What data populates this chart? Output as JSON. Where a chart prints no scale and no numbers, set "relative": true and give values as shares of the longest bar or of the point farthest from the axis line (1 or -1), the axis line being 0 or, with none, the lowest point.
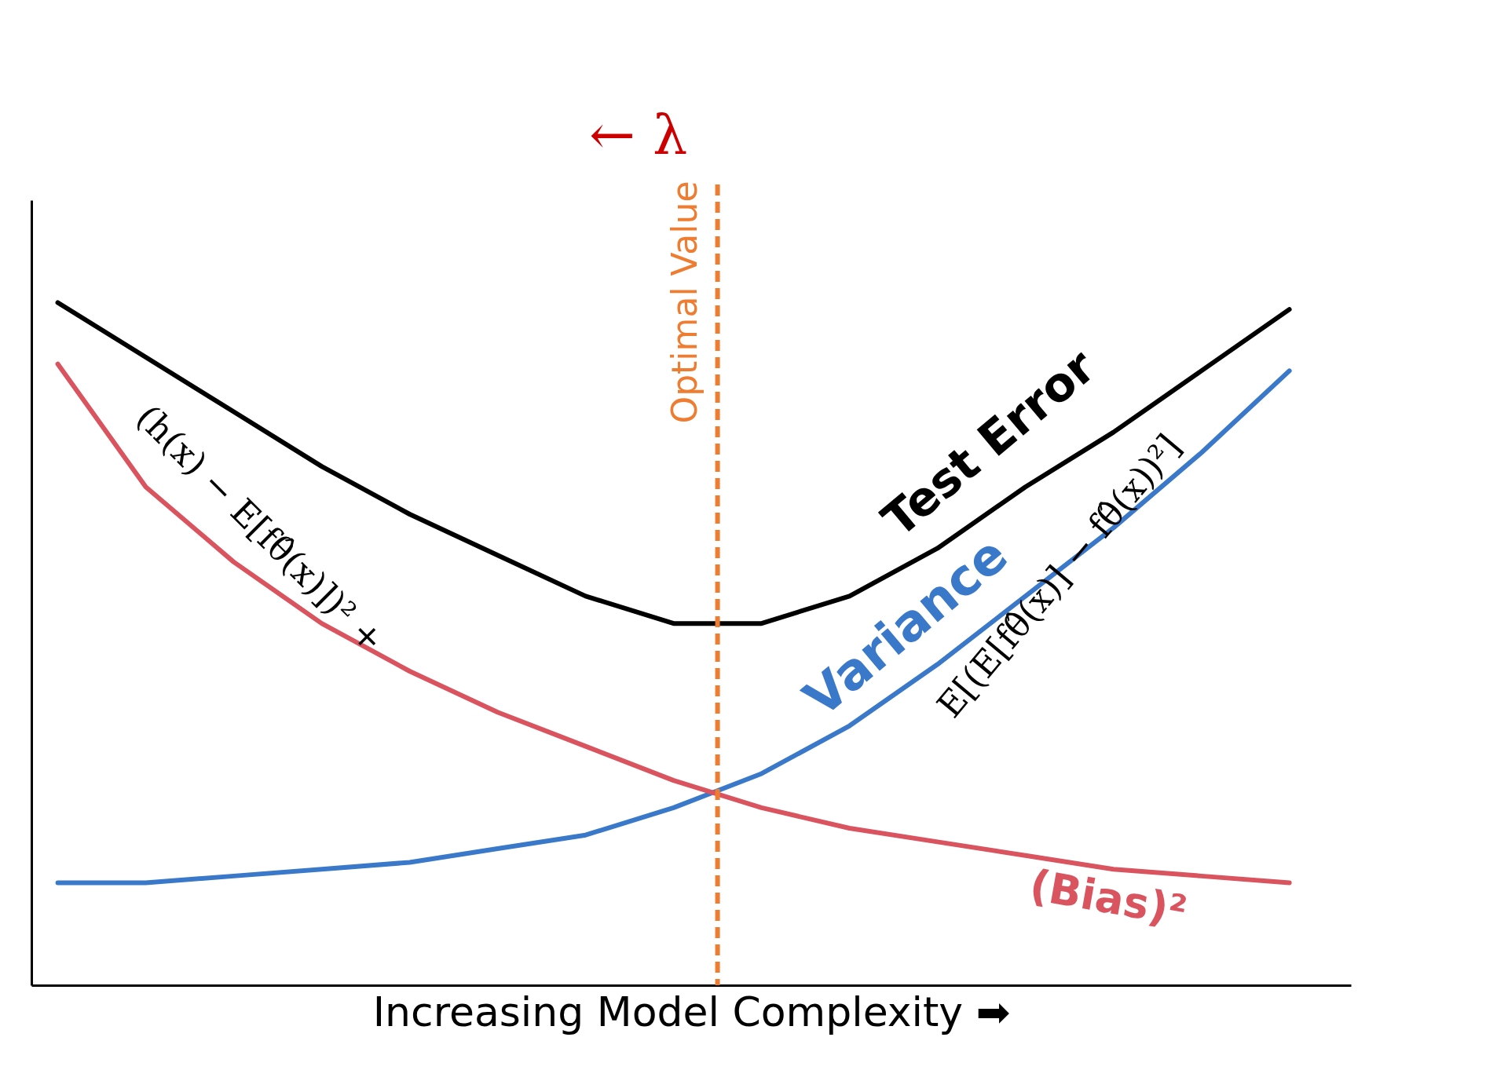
{
  "chart_data": {
    "type": "line",
    "relative": true,
    "xlabel": "Increasing Model Complexity ➡",
    "categories": [
      null,
      null,
      null,
      null,
      null,
      null,
      null,
      null,
      null,
      null,
      null,
      null,
      null,
      null,
      null
    ],
    "series": [
      {
        "name": "Test Error",
        "color": "#000000",
        "values": [
          1,
          0.92,
          0.84,
          0.76,
          0.69,
          0.63,
          0.57,
          0.53,
          0.53,
          0.57,
          0.64,
          0.73,
          0.81,
          0.9,
          0.99
        ]
      },
      {
        "name": "Variance",
        "color": "#3a78c9",
        "values": [
          0.15,
          0.15,
          0.16,
          0.17,
          0.18,
          0.2,
          0.22,
          0.26,
          0.31,
          0.38,
          0.47,
          0.57,
          0.67,
          0.78,
          0.9
        ]
      },
      {
        "name": "(Bias)²",
        "color": "#d9545e",
        "values": [
          0.91,
          0.73,
          0.62,
          0.53,
          0.46,
          0.4,
          0.35,
          0.3,
          0.26,
          0.23,
          0.21,
          0.19,
          0.17,
          0.16,
          0.15
        ]
      }
    ],
    "annotations": [
      "(h(x) − E[fθ̂(x)])² +",
      "E[(E[fθ̂(x)] − fθ̂(x))²]",
      "← λ",
      "Optimal Value"
    ],
    "grid": false,
    "legend": false,
    "marker": "none",
    "line_style": "solid"
  }
}
